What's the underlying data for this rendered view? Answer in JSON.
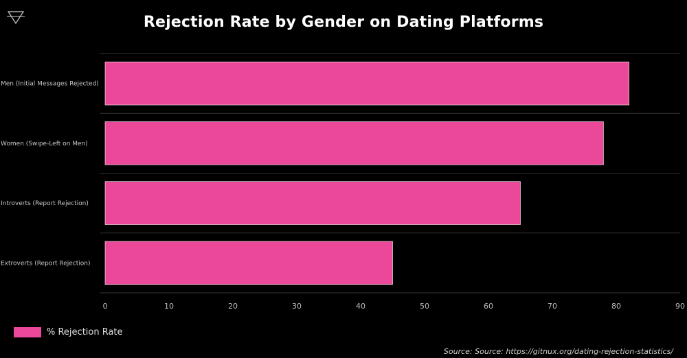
{
  "chart_data": {
    "type": "bar",
    "orientation": "horizontal",
    "title": "Rejection Rate by Gender on Dating Platforms",
    "categories": [
      "Men (Initial Messages Rejected)",
      "Women (Swipe-Left on Men)",
      "Introverts (Report Rejection)",
      "Extroverts (Report Rejection)"
    ],
    "series": [
      {
        "name": "% Rejection Rate",
        "values": [
          82,
          78,
          65,
          45
        ],
        "color": "#ec4899"
      }
    ],
    "xlim": [
      0,
      90
    ],
    "xticks": [
      0,
      10,
      20,
      30,
      40,
      50,
      60,
      70,
      80,
      90
    ],
    "xlabel": "",
    "ylabel": "",
    "grid": "horizontal separators",
    "legend_position": "bottom-left"
  },
  "source": "Source: Source: https://gitnux.org/dating-rejection-statistics/",
  "logo_icon": "triangle-down-icon",
  "colors": {
    "background": "#000000",
    "bar": "#ec4899",
    "grid": "#333333"
  }
}
